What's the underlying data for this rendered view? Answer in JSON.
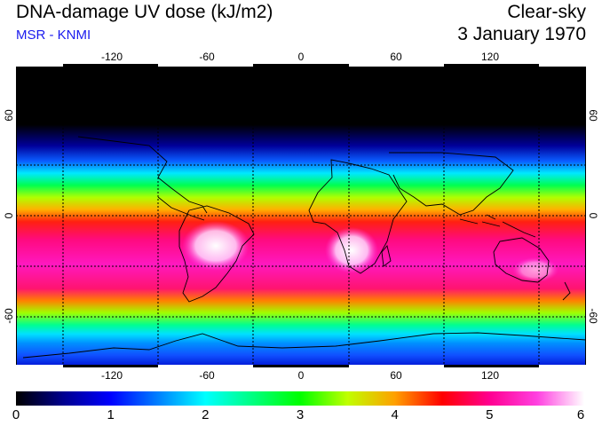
{
  "header": {
    "title": "DNA-damage UV dose (kJ/m2)",
    "credit": "MSR - KNMI",
    "mode": "Clear-sky",
    "date": "3 January 1970"
  },
  "map": {
    "lon_ticks": [
      "-120",
      "-60",
      "0",
      "60",
      "120"
    ],
    "lat_ticks": [
      "60",
      "0",
      "-60"
    ],
    "lon_range": [
      -180,
      180
    ],
    "lat_range": [
      -90,
      90
    ],
    "grid_lons": [
      -150,
      -90,
      -30,
      30,
      90,
      150
    ],
    "grid_lats": [
      60,
      30,
      0,
      -30,
      -60
    ]
  },
  "colorbar": {
    "labels": [
      "0",
      "1",
      "2",
      "3",
      "4",
      "5",
      "6"
    ],
    "range": [
      0,
      6
    ],
    "stops": [
      {
        "v": 0.0,
        "c": "#000000"
      },
      {
        "v": 0.5,
        "c": "#00008f"
      },
      {
        "v": 1.0,
        "c": "#0000ff"
      },
      {
        "v": 1.5,
        "c": "#0080ff"
      },
      {
        "v": 2.0,
        "c": "#00ffff"
      },
      {
        "v": 2.5,
        "c": "#00ff80"
      },
      {
        "v": 3.0,
        "c": "#00ff00"
      },
      {
        "v": 3.5,
        "c": "#c0ff00"
      },
      {
        "v": 4.0,
        "c": "#ffa000"
      },
      {
        "v": 4.5,
        "c": "#ff0000"
      },
      {
        "v": 5.0,
        "c": "#ff0090"
      },
      {
        "v": 5.5,
        "c": "#ff40e0"
      },
      {
        "v": 6.0,
        "c": "#ffffff"
      }
    ]
  },
  "colors": {
    "title": "#000000",
    "credit": "#1a1aee",
    "coastline": "#000000",
    "grid": "#000000",
    "background": "#ffffff"
  }
}
